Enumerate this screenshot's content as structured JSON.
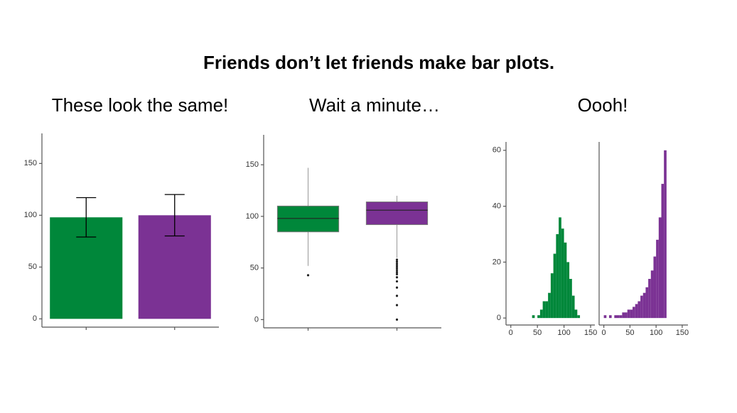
{
  "slide_title": "Friends don’t let friends make bar plots.",
  "chart_data": [
    {
      "type": "bar",
      "title": "These look the same!",
      "categories": [
        null,
        null
      ],
      "values": [
        98,
        100
      ],
      "errors": [
        19,
        20
      ],
      "colors": [
        "#00873a",
        "#7b3294"
      ],
      "ylim": [
        -8,
        179
      ],
      "yticks": [
        0,
        50,
        100,
        150
      ]
    },
    {
      "type": "box",
      "title": "Wait a minute…",
      "categories": [
        null,
        null
      ],
      "boxes": [
        {
          "color": "#00873a",
          "whisker_low": 52,
          "q1": 85,
          "median": 98,
          "q3": 110,
          "whisker_high": 147,
          "outliers": [
            43
          ]
        },
        {
          "color": "#7b3294",
          "whisker_low": 60,
          "q1": 92,
          "median": 106,
          "q3": 114,
          "whisker_high": 120,
          "outliers": [
            58,
            56,
            54,
            52,
            50,
            48,
            46,
            44,
            41,
            37,
            31,
            23,
            14,
            0
          ]
        }
      ],
      "ylim": [
        -8,
        179
      ],
      "yticks": [
        0,
        50,
        100,
        150
      ]
    },
    {
      "type": "histogram",
      "title": "Oooh!",
      "color": "#00873a",
      "bins": [
        40,
        45,
        50,
        55,
        60,
        65,
        70,
        75,
        80,
        85,
        90,
        95,
        100,
        105,
        110,
        115,
        120,
        125,
        130,
        135
      ],
      "counts": [
        1,
        0,
        1,
        3,
        6,
        6,
        9,
        16,
        23,
        30,
        36,
        32,
        27,
        20,
        14,
        8,
        3,
        1,
        0
      ],
      "xlim": [
        -9,
        158
      ],
      "xticks": [
        0,
        50,
        100,
        150
      ],
      "ylim": [
        -2.5,
        63
      ],
      "yticks": [
        0,
        20,
        40,
        60
      ]
    },
    {
      "type": "histogram",
      "color": "#7b3294",
      "bins": [
        0,
        5,
        10,
        15,
        20,
        25,
        30,
        35,
        40,
        45,
        50,
        55,
        60,
        65,
        70,
        75,
        80,
        85,
        90,
        95,
        100,
        105,
        110,
        115,
        120
      ],
      "counts": [
        1,
        0,
        1,
        0,
        1,
        1,
        1,
        2,
        2,
        3,
        3,
        4,
        5,
        6,
        8,
        9,
        11,
        14,
        17,
        22,
        28,
        36,
        48,
        60
      ],
      "xlim": [
        -9,
        161
      ],
      "xticks": [
        0,
        50,
        100,
        150
      ],
      "ylim": [
        -2.5,
        63
      ]
    }
  ]
}
